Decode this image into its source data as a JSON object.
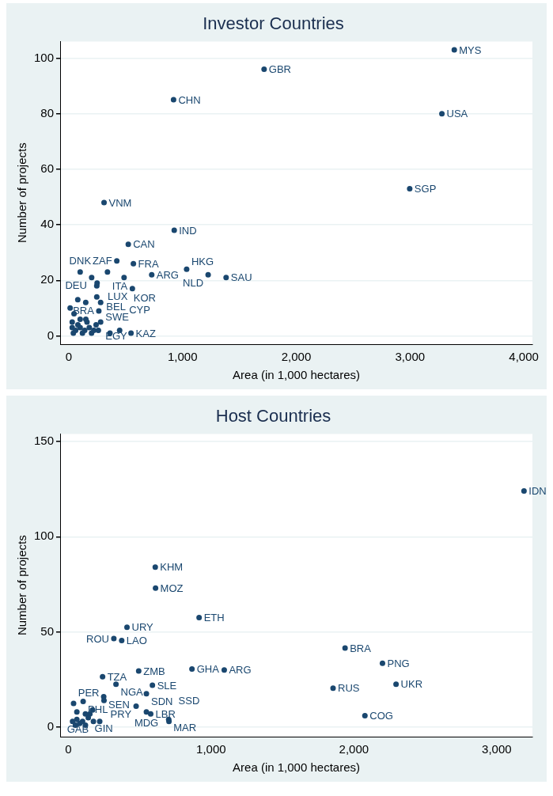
{
  "chart_data": [
    {
      "type": "scatter",
      "title": "Investor Countries",
      "xlabel": "Area (in 1,000 hectares)",
      "ylabel": "Number of projects",
      "color": "#1a476f",
      "marker": "circle",
      "grid": "y",
      "xlim": [
        -76,
        4076
      ],
      "ylim": [
        -3,
        106
      ],
      "xticks": [
        0,
        {
          "value": 1000,
          "label": "1,000"
        },
        {
          "value": 2000,
          "label": "2,000"
        },
        {
          "value": 3000,
          "label": "3,000"
        },
        {
          "value": 4000,
          "label": "4,000"
        }
      ],
      "yticks": [
        0,
        20,
        40,
        60,
        80,
        100
      ],
      "x": [
        3389,
        1717,
        921,
        3280,
        2997,
        310,
        927,
        523,
        422,
        568,
        100,
        340,
        1036,
        729,
        1225,
        1383,
        486,
        201,
        246,
        559,
        249,
        246,
        79,
        149,
        280,
        12,
        46,
        264,
        280,
        547,
        362,
        447,
        30,
        40,
        60,
        80,
        100,
        120,
        140,
        160,
        180,
        200,
        220,
        240,
        260,
        150,
        100,
        30
      ],
      "values": [
        103,
        96,
        85,
        80,
        53,
        48,
        38,
        33,
        27,
        26,
        23,
        23,
        24,
        22,
        22,
        21,
        21,
        21,
        18,
        17,
        19,
        14,
        13,
        12,
        12,
        10,
        8,
        9,
        5,
        1,
        1,
        2,
        3,
        1,
        2,
        4,
        3,
        1,
        2,
        5,
        3,
        1,
        2,
        4,
        2,
        6,
        6,
        5
      ],
      "annotations": [
        {
          "text": "MYS",
          "x": 3389,
          "y": 103
        },
        {
          "text": "GBR",
          "x": 1717,
          "y": 96
        },
        {
          "text": "CHN",
          "x": 921,
          "y": 85
        },
        {
          "text": "USA",
          "x": 3280,
          "y": 80
        },
        {
          "text": "SGP",
          "x": 2997,
          "y": 53
        },
        {
          "text": "VNM",
          "x": 310,
          "y": 48
        },
        {
          "text": "IND",
          "x": 927,
          "y": 38
        },
        {
          "text": "CAN",
          "x": 523,
          "y": 33
        },
        {
          "text": "ZAF",
          "x": 422,
          "y": 27
        },
        {
          "text": "FRA",
          "x": 568,
          "y": 26
        },
        {
          "text": "DNK",
          "x": 100,
          "y": 23
        },
        {
          "text": "ITA",
          "x": 340,
          "y": 23
        },
        {
          "text": "HKG",
          "x": 1036,
          "y": 24
        },
        {
          "text": "ARG",
          "x": 729,
          "y": 22
        },
        {
          "text": "NLD",
          "x": 1225,
          "y": 22
        },
        {
          "text": "SAU",
          "x": 1383,
          "y": 21
        },
        {
          "text": "KOR",
          "x": 486,
          "y": 21
        },
        {
          "text": "DEU",
          "x": 201,
          "y": 21
        },
        {
          "text": "BEL",
          "x": 246,
          "y": 18
        },
        {
          "text": "LUX",
          "x": 559,
          "y": 17
        },
        {
          "text": "SWE",
          "x": 280,
          "y": 12
        },
        {
          "text": "BRA",
          "x": 264,
          "y": 9
        },
        {
          "text": "EGY",
          "x": 280,
          "y": 5
        },
        {
          "text": "CYP",
          "x": 447,
          "y": 2
        },
        {
          "text": "KAZ",
          "x": 547,
          "y": 1
        }
      ]
    },
    {
      "type": "scatter",
      "title": "Host Countries",
      "xlabel": "Area (in 1,000 hectares)",
      "ylabel": "Number of projects",
      "color": "#1a476f",
      "marker": "circle",
      "grid": "y",
      "xlim": [
        -57,
        3250
      ],
      "ylim": [
        -5,
        154
      ],
      "xticks": [
        0,
        {
          "value": 1000,
          "label": "1,000"
        },
        {
          "value": 2000,
          "label": "2,000"
        },
        {
          "value": 3000,
          "label": "3,000"
        }
      ],
      "yticks": [
        0,
        50,
        100,
        150
      ],
      "x": [
        3191,
        609,
        611,
        916,
        411,
        319,
        374,
        1938,
        2200,
        493,
        866,
        1092,
        240,
        334,
        589,
        2295,
        1854,
        547,
        248,
        250,
        104,
        37,
        475,
        547,
        577,
        703,
        705,
        2077,
        151,
        176,
        30,
        50,
        60,
        80,
        100,
        120,
        140,
        220,
        60,
        120,
        170
      ],
      "values": [
        124,
        84,
        73,
        57.5,
        52.5,
        46.5,
        45.5,
        41.5,
        33.5,
        29.5,
        30.5,
        30,
        26.5,
        22.5,
        22,
        22.5,
        20.5,
        17.5,
        16,
        14,
        13.5,
        12.5,
        11,
        8,
        7,
        4,
        3,
        6,
        7,
        3,
        3,
        1,
        4,
        2,
        3,
        1,
        5,
        3,
        8,
        7,
        9
      ],
      "annotations": [
        {
          "text": "IDN",
          "x": 3191,
          "y": 124
        },
        {
          "text": "KHM",
          "x": 609,
          "y": 84
        },
        {
          "text": "MOZ",
          "x": 611,
          "y": 73
        },
        {
          "text": "ETH",
          "x": 916,
          "y": 57.5
        },
        {
          "text": "URY",
          "x": 411,
          "y": 52.5
        },
        {
          "text": "ROU",
          "x": 319,
          "y": 46.5
        },
        {
          "text": "LAO",
          "x": 374,
          "y": 45.5
        },
        {
          "text": "BRA",
          "x": 1938,
          "y": 41.5
        },
        {
          "text": "PNG",
          "x": 2200,
          "y": 33.5
        },
        {
          "text": "ZMB",
          "x": 493,
          "y": 29.5
        },
        {
          "text": "GHA",
          "x": 866,
          "y": 30.5
        },
        {
          "text": "ARG",
          "x": 1092,
          "y": 30
        },
        {
          "text": "TZA",
          "x": 240,
          "y": 26.5
        },
        {
          "text": "NGA",
          "x": 334,
          "y": 22.5
        },
        {
          "text": "SLE",
          "x": 589,
          "y": 22
        },
        {
          "text": "UKR",
          "x": 2295,
          "y": 22.5
        },
        {
          "text": "RUS",
          "x": 1854,
          "y": 20.5
        },
        {
          "text": "SDN",
          "x": 547,
          "y": 17.5
        },
        {
          "text": "SEN",
          "x": 248,
          "y": 16
        },
        {
          "text": "PER",
          "x": 250,
          "y": 14
        },
        {
          "text": "PHL",
          "x": 104,
          "y": 13.5
        },
        {
          "text": "PRY",
          "x": 475,
          "y": 11
        },
        {
          "text": "MDG",
          "x": 547,
          "y": 8
        },
        {
          "text": "LBR",
          "x": 577,
          "y": 7
        },
        {
          "text": "MAR",
          "x": 703,
          "y": 4
        },
        {
          "text": "SSD",
          "x": 705,
          "y": 3
        },
        {
          "text": "COG",
          "x": 2077,
          "y": 6
        },
        {
          "text": "GIN",
          "x": 151,
          "y": 7
        },
        {
          "text": "GAB",
          "x": 176,
          "y": 3
        }
      ]
    }
  ]
}
